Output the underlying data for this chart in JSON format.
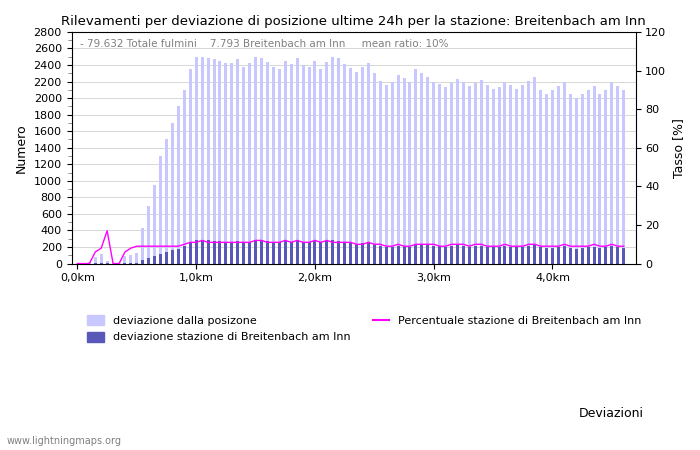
{
  "title": "Rilevamenti per deviazione di posizione ultime 24h per la stazione: Breitenbach am Inn",
  "subtitle": "- 79.632 Totale fulmini    7.793 Breitenbach am Inn     mean ratio: 10%",
  "xlabel": "Deviazioni",
  "ylabel_left": "Numero",
  "ylabel_right": "Tasso [%]",
  "watermark": "www.lightningmaps.org",
  "legend_light": "deviazione dalla posizone",
  "legend_dark": "deviazione stazione di Breitenbach am Inn",
  "legend_line": "Percentuale stazione di Breitenbach am Inn",
  "xtick_labels": [
    "0,0km",
    "1,0km",
    "2,0km",
    "3,0km",
    "4,0km"
  ],
  "ylim_left": [
    0,
    2800
  ],
  "ylim_right": [
    0,
    120
  ],
  "yticks_left": [
    0,
    200,
    400,
    600,
    800,
    1000,
    1200,
    1400,
    1600,
    1800,
    2000,
    2200,
    2400,
    2600,
    2800
  ],
  "yticks_right": [
    0,
    20,
    40,
    60,
    80,
    100,
    120
  ],
  "color_light_bar": "#c8c8ff",
  "color_dark_bar": "#5858b8",
  "color_line": "#ff00ff",
  "color_grid": "#c8c8c8",
  "color_bg": "#ffffff",
  "total_bars": [
    5,
    8,
    20,
    80,
    120,
    30,
    10,
    5,
    90,
    100,
    130,
    430,
    700,
    950,
    1300,
    1500,
    1700,
    1900,
    2100,
    2350,
    2500,
    2500,
    2480,
    2470,
    2450,
    2430,
    2420,
    2470,
    2380,
    2430,
    2500,
    2490,
    2440,
    2380,
    2350,
    2450,
    2410,
    2480,
    2400,
    2380,
    2450,
    2350,
    2440,
    2500,
    2480,
    2410,
    2360,
    2320,
    2380,
    2420,
    2300,
    2210,
    2160,
    2200,
    2280,
    2240,
    2190,
    2350,
    2300,
    2250,
    2200,
    2170,
    2140,
    2180,
    2230,
    2200,
    2150,
    2180,
    2220,
    2160,
    2110,
    2140,
    2200,
    2160,
    2110,
    2160,
    2210,
    2260,
    2100,
    2050,
    2100,
    2150,
    2200,
    2050,
    2000,
    2050,
    2100,
    2150,
    2050,
    2100,
    2200,
    2150,
    2100
  ],
  "station_bars": [
    0,
    0,
    0,
    5,
    10,
    5,
    0,
    0,
    5,
    8,
    12,
    40,
    65,
    90,
    120,
    140,
    160,
    180,
    210,
    250,
    280,
    290,
    280,
    275,
    270,
    265,
    260,
    270,
    260,
    265,
    290,
    285,
    275,
    265,
    255,
    275,
    265,
    280,
    265,
    260,
    275,
    255,
    270,
    280,
    270,
    255,
    245,
    235,
    245,
    255,
    230,
    210,
    200,
    205,
    215,
    210,
    200,
    240,
    230,
    220,
    215,
    210,
    205,
    210,
    220,
    215,
    205,
    210,
    215,
    205,
    195,
    200,
    210,
    200,
    195,
    200,
    210,
    220,
    195,
    185,
    190,
    200,
    210,
    190,
    180,
    185,
    195,
    205,
    185,
    195,
    210,
    200,
    185
  ],
  "line_values": [
    0,
    0,
    0,
    6,
    8,
    17,
    0,
    0,
    6,
    8,
    9,
    9,
    9,
    9,
    9,
    9,
    9,
    9,
    10,
    11,
    11,
    12,
    11,
    11,
    11,
    11,
    11,
    11,
    11,
    11,
    12,
    12,
    11,
    11,
    11,
    12,
    11,
    12,
    11,
    11,
    12,
    11,
    12,
    11,
    11,
    11,
    11,
    10,
    10,
    11,
    10,
    10,
    9,
    9,
    10,
    9,
    9,
    10,
    10,
    10,
    10,
    9,
    9,
    10,
    10,
    10,
    9,
    10,
    10,
    9,
    9,
    9,
    10,
    9,
    9,
    9,
    10,
    10,
    9,
    9,
    9,
    9,
    10,
    9,
    9,
    9,
    9,
    10,
    9,
    9,
    10,
    9,
    9
  ],
  "n_bars_per_km": 20,
  "total_km": 4.5
}
